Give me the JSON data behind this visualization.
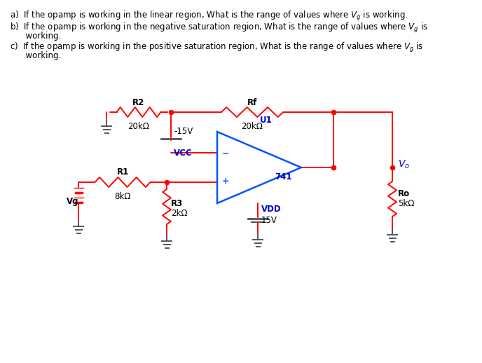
{
  "bg_color": "#ffffff",
  "red_wire": "#ff0000",
  "blue_color": "#0055ff",
  "dark_blue": "#0000cc",
  "black": "#000000",
  "gray": "#555555",
  "figsize": [
    6.88,
    5.18
  ],
  "dpi": 100,
  "labels": {
    "R2": "R2",
    "R2v": "20kΩ",
    "Rf": "Rf",
    "Rfv": "20kΩ",
    "R1": "R1",
    "R1v": "8kΩ",
    "R3": "R3",
    "R3v": "2kΩ",
    "Ro": "Ro",
    "Rov": "5kΩ",
    "vcc_v": "-15V",
    "vcc_n": "VCC",
    "vdd_n": "VDD",
    "vdd_v": "15V",
    "u1": "U1",
    "ic": "741",
    "vo": "V_o",
    "vg": "Vg"
  },
  "q1": "a)  If the opamp is working in the linear region, What is the range of values where $V_g$ is working.",
  "q2a": "b)  If the opamp is working in the negative saturation region, What is the range of values where $V_g$ is",
  "q2b": "      working.",
  "q3a": "c)  If the opamp is working in the positive saturation region, What is the range of values where $V_g$ is",
  "q3b": "      working."
}
